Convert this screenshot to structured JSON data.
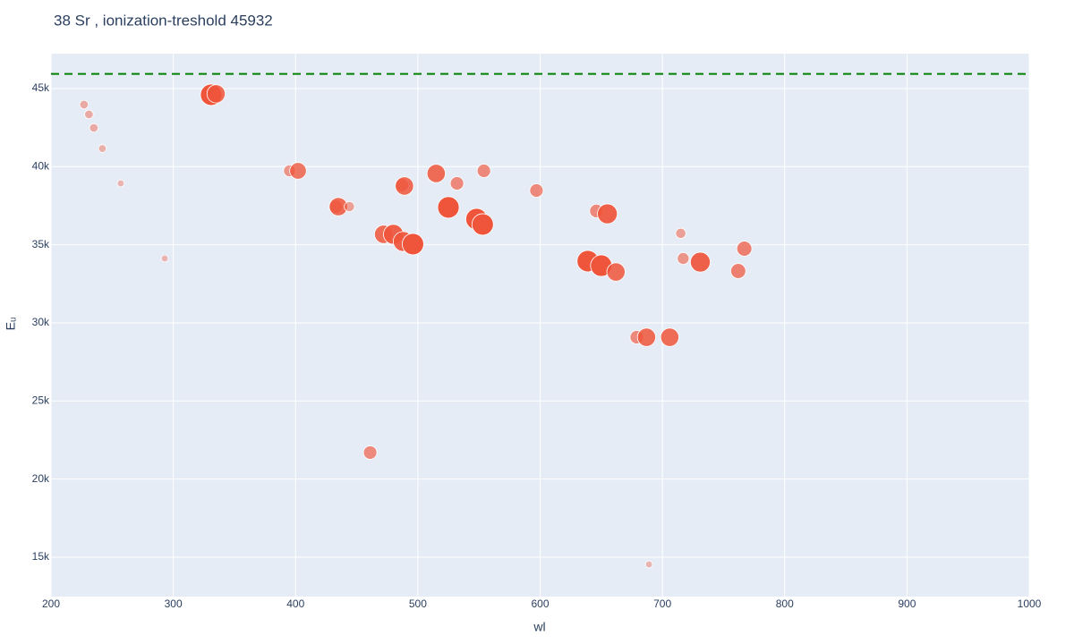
{
  "chart_data": {
    "type": "scatter",
    "title": "38 Sr , ionization-treshold 45932",
    "x_label": "wl",
    "y_label": "Eᵤ",
    "color": "#ef553b",
    "threshold": 45932,
    "threshold_color": "#008000",
    "grid": true,
    "xlim": [
      200,
      1000
    ],
    "xticks": [
      200,
      300,
      400,
      500,
      600,
      700,
      800,
      900,
      1000
    ],
    "ylim": [
      12480,
      47230
    ],
    "yticks": [
      {
        "value": 15000,
        "label": "15k"
      },
      {
        "value": 20000,
        "label": "20k"
      },
      {
        "value": 25000,
        "label": "25k"
      },
      {
        "value": 30000,
        "label": "30k"
      },
      {
        "value": 35000,
        "label": "35k"
      },
      {
        "value": 40000,
        "label": "40k"
      },
      {
        "value": 45000,
        "label": "45k"
      }
    ],
    "x": [
      227,
      231,
      235,
      242,
      257,
      293,
      331,
      335,
      395,
      402,
      433,
      435,
      444,
      461,
      472,
      480,
      487,
      489,
      488,
      496,
      515,
      525,
      532,
      554,
      548,
      553,
      597,
      639,
      646,
      655,
      650,
      662,
      679,
      687,
      689,
      706,
      715,
      717,
      731,
      762,
      767
    ],
    "values": [
      43970,
      43340,
      42480,
      41160,
      38930,
      34120,
      44600,
      44660,
      39730,
      39730,
      37440,
      37440,
      37440,
      21700,
      35670,
      35670,
      38820,
      38760,
      35210,
      35040,
      39560,
      37390,
      38930,
      39730,
      36640,
      36300,
      38470,
      33950,
      37160,
      36980,
      33660,
      33260,
      29080,
      29080,
      14540,
      29080,
      35730,
      34120,
      33890,
      33320,
      34750
    ],
    "intensity": [
      2,
      2,
      2,
      1.5,
      1,
      1,
      10,
      8,
      4,
      7,
      5,
      8,
      3,
      5,
      8,
      9,
      5,
      8,
      9,
      10,
      8,
      10,
      5,
      5,
      10,
      10,
      5,
      10,
      5,
      9,
      10,
      8,
      5,
      8,
      1,
      8,
      3,
      4,
      9,
      6,
      6
    ]
  }
}
